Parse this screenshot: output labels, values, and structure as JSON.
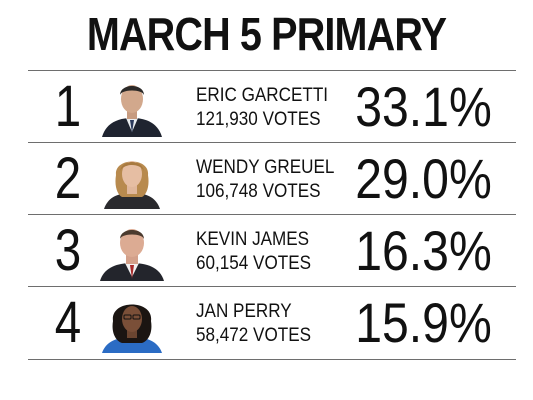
{
  "title": "MARCH 5 PRIMARY",
  "candidates": [
    {
      "rank": "1",
      "name": "ERIC GARCETTI",
      "votes": "121,930 VOTES",
      "percent": "33.1%",
      "photo": "man-dark-suit-portrait-icon"
    },
    {
      "rank": "2",
      "name": "WENDY GREUEL",
      "votes": "106,748 VOTES",
      "percent": "29.0%",
      "photo": "woman-blonde-portrait-icon"
    },
    {
      "rank": "3",
      "name": "KEVIN JAMES",
      "votes": "60,154 VOTES",
      "percent": "16.3%",
      "photo": "man-red-tie-portrait-icon"
    },
    {
      "rank": "4",
      "name": "JAN PERRY",
      "votes": "58,472 VOTES",
      "percent": "15.9%",
      "photo": "woman-blue-top-portrait-icon"
    }
  ]
}
